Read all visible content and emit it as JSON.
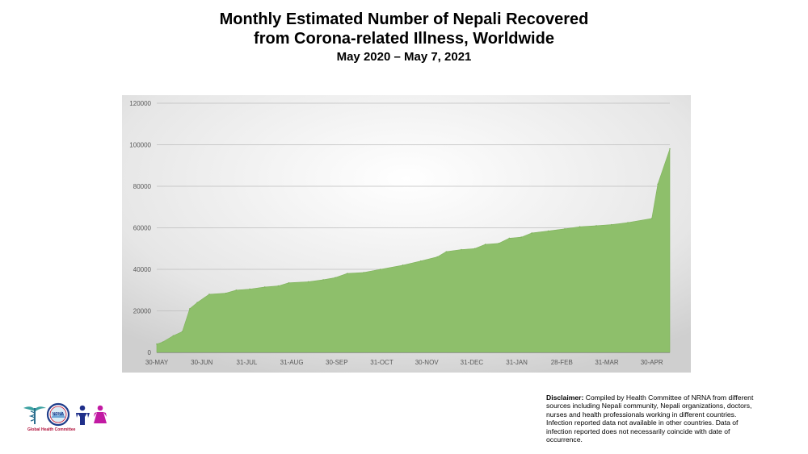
{
  "chart_data": {
    "type": "area",
    "title": "Monthly Estimated Number of Nepali Recovered",
    "title_line2": "from Corona-related Illness, Worldwide",
    "subtitle": "May 2020 – May 7, 2021",
    "xlabel": "",
    "ylabel": "",
    "ylim": [
      0,
      120000
    ],
    "y_ticks": [
      "0",
      "20000",
      "40000",
      "60000",
      "80000",
      "100000",
      "120000"
    ],
    "x_tick_labels": [
      "30-MAY",
      "30-JUN",
      "31-JUL",
      "31-AUG",
      "30-SEP",
      "31-OCT",
      "30-NOV",
      "31-DEC",
      "31-JAN",
      "28-FEB",
      "31-MAR",
      "30-APR"
    ],
    "x_range": [
      "2020-05-30",
      "2021-05-07"
    ],
    "grid": true,
    "fill_color": "#8ebf6b",
    "points": [
      {
        "x": "2020-05-30",
        "y": 4000
      },
      {
        "x": "2020-06-03",
        "y": 5000
      },
      {
        "x": "2020-06-10",
        "y": 8000
      },
      {
        "x": "2020-06-16",
        "y": 10000
      },
      {
        "x": "2020-06-21",
        "y": 21000
      },
      {
        "x": "2020-06-26",
        "y": 24000
      },
      {
        "x": "2020-07-04",
        "y": 28000
      },
      {
        "x": "2020-07-15",
        "y": 28500
      },
      {
        "x": "2020-07-22",
        "y": 30000
      },
      {
        "x": "2020-07-31",
        "y": 30500
      },
      {
        "x": "2020-08-10",
        "y": 31500
      },
      {
        "x": "2020-08-19",
        "y": 32000
      },
      {
        "x": "2020-08-26",
        "y": 33500
      },
      {
        "x": "2020-09-08",
        "y": 34000
      },
      {
        "x": "2020-09-18",
        "y": 35000
      },
      {
        "x": "2020-09-26",
        "y": 36000
      },
      {
        "x": "2020-10-04",
        "y": 38000
      },
      {
        "x": "2020-10-15",
        "y": 38500
      },
      {
        "x": "2020-10-26",
        "y": 40000
      },
      {
        "x": "2020-11-10",
        "y": 42000
      },
      {
        "x": "2020-11-22",
        "y": 44000
      },
      {
        "x": "2020-12-03",
        "y": 46000
      },
      {
        "x": "2020-12-09",
        "y": 48500
      },
      {
        "x": "2020-12-19",
        "y": 49500
      },
      {
        "x": "2020-12-28",
        "y": 50000
      },
      {
        "x": "2021-01-04",
        "y": 52000
      },
      {
        "x": "2021-01-13",
        "y": 52500
      },
      {
        "x": "2021-01-20",
        "y": 55000
      },
      {
        "x": "2021-01-28",
        "y": 55500
      },
      {
        "x": "2021-02-04",
        "y": 57500
      },
      {
        "x": "2021-02-15",
        "y": 58500
      },
      {
        "x": "2021-02-26",
        "y": 59500
      },
      {
        "x": "2021-03-08",
        "y": 60500
      },
      {
        "x": "2021-03-19",
        "y": 61000
      },
      {
        "x": "2021-03-29",
        "y": 61500
      },
      {
        "x": "2021-04-09",
        "y": 62500
      },
      {
        "x": "2021-04-25",
        "y": 64500
      },
      {
        "x": "2021-04-29",
        "y": 81000
      },
      {
        "x": "2021-05-07",
        "y": 98000
      }
    ]
  },
  "logo": {
    "badge_text": "NRNA",
    "caption": "Global Health Committee"
  },
  "disclaimer": {
    "label": "Disclaimer:",
    "text": " Compiled by Health Committee of NRNA from different sources including Nepali community, Nepali organizations, doctors, nurses and health professionals working in different countries. Infection reported data not available in other countries. Data of infection reported does not necessarily coincide with date of occurrence."
  }
}
